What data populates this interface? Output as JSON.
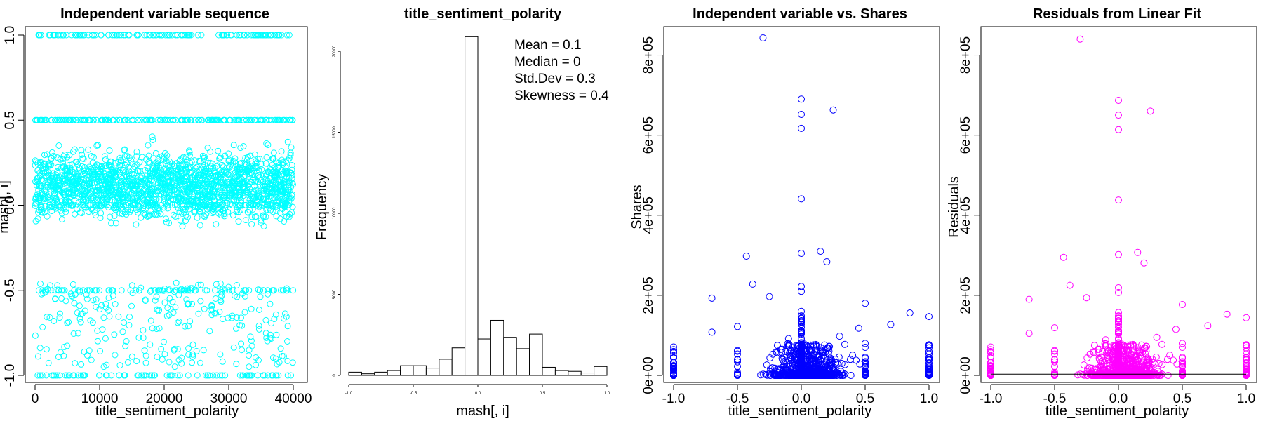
{
  "chart_data": [
    {
      "type": "scatter",
      "title": "Independent variable sequence",
      "xlabel": "title_sentiment_polarity",
      "ylabel": "mash[, i]",
      "xlim": [
        0,
        40000
      ],
      "ylim": [
        -1.0,
        1.0
      ],
      "x_ticks": [
        "0",
        "10000",
        "20000",
        "30000",
        "40000"
      ],
      "y_ticks": [
        "-1.0",
        "-0.5",
        "0.0",
        "0.5",
        "1.0"
      ],
      "point_color": "#00ffff",
      "grid": false
    },
    {
      "type": "bar",
      "title": "title_sentiment_polarity",
      "xlabel": "mash[, i]",
      "ylabel": "Frequency",
      "xlim": [
        -1.0,
        1.0
      ],
      "ylim": [
        0,
        21000
      ],
      "x_ticks": [
        "-1.0",
        "-0.5",
        "0.0",
        "0.5",
        "1.0"
      ],
      "y_ticks": [
        "0",
        "5000",
        "10000",
        "15000",
        "20000"
      ],
      "bin_edges": [
        -1.0,
        -0.9,
        -0.8,
        -0.7,
        -0.6,
        -0.5,
        -0.4,
        -0.3,
        -0.2,
        -0.1,
        0.0,
        0.1,
        0.2,
        0.3,
        0.4,
        0.5,
        0.6,
        0.7,
        0.8,
        0.9,
        1.0
      ],
      "values": [
        200,
        100,
        200,
        300,
        600,
        600,
        450,
        1000,
        1700,
        20900,
        2250,
        3400,
        2350,
        1650,
        2550,
        500,
        300,
        250,
        150,
        550
      ],
      "stats": [
        "Mean = 0.1",
        "Median = 0",
        "Std.Dev = 0.3",
        "Skewness = 0.4"
      ]
    },
    {
      "type": "scatter",
      "title": "Independent variable vs. Shares",
      "xlabel": "title_sentiment_polarity",
      "ylabel": "Shares",
      "xlim": [
        -1.0,
        1.0
      ],
      "ylim": [
        0,
        850000
      ],
      "x_ticks": [
        "-1.0",
        "-0.5",
        "0.0",
        "0.5",
        "1.0"
      ],
      "y_ticks": [
        "0e+00",
        "2e+05",
        "4e+05",
        "6e+05",
        "8e+05"
      ],
      "point_color": "#0000ff",
      "outliers": [
        [
          -0.3,
          843000
        ],
        [
          0.0,
          690000
        ],
        [
          0.0,
          652000
        ],
        [
          0.0,
          617000
        ],
        [
          0.25,
          663000
        ],
        [
          0.0,
          441000
        ],
        [
          0.15,
          310000
        ],
        [
          0.0,
          305000
        ],
        [
          -0.43,
          298000
        ],
        [
          0.2,
          284000
        ],
        [
          -0.38,
          228000
        ],
        [
          0.0,
          222000
        ],
        [
          0.0,
          210000
        ],
        [
          -0.25,
          197000
        ],
        [
          -0.7,
          193000
        ],
        [
          0.5,
          180000
        ],
        [
          0.85,
          156000
        ],
        [
          0.0,
          160000
        ],
        [
          0.7,
          127000
        ],
        [
          1.0,
          147000
        ],
        [
          -0.5,
          122000
        ],
        [
          -0.7,
          108000
        ],
        [
          0.45,
          118000
        ],
        [
          0.3,
          98000
        ],
        [
          -0.1,
          92000
        ]
      ],
      "grid": false
    },
    {
      "type": "scatter",
      "title": "Residuals from Linear Fit",
      "xlabel": "title_sentiment_polarity",
      "ylabel": "Residuals",
      "xlim": [
        -1.0,
        1.0
      ],
      "ylim": [
        0,
        850000
      ],
      "x_ticks": [
        "-1.0",
        "-0.5",
        "0.0",
        "0.5",
        "1.0"
      ],
      "y_ticks": [
        "0e+00",
        "2e+05",
        "4e+05",
        "6e+05",
        "8e+05"
      ],
      "point_color": "#ff00ff",
      "outliers": [
        [
          -0.3,
          840000
        ],
        [
          0.0,
          687000
        ],
        [
          0.0,
          650000
        ],
        [
          0.0,
          614000
        ],
        [
          0.25,
          660000
        ],
        [
          0.0,
          438000
        ],
        [
          0.15,
          307000
        ],
        [
          0.0,
          302000
        ],
        [
          -0.43,
          295000
        ],
        [
          0.2,
          281000
        ],
        [
          -0.38,
          225000
        ],
        [
          0.0,
          219000
        ],
        [
          0.0,
          207000
        ],
        [
          -0.25,
          194000
        ],
        [
          -0.7,
          190000
        ],
        [
          0.5,
          177000
        ],
        [
          0.85,
          153000
        ],
        [
          0.0,
          157000
        ],
        [
          0.7,
          124000
        ],
        [
          1.0,
          144000
        ],
        [
          -0.5,
          119000
        ],
        [
          -0.7,
          105000
        ],
        [
          0.45,
          115000
        ],
        [
          0.3,
          95000
        ],
        [
          -0.1,
          89000
        ]
      ],
      "grid": false
    }
  ]
}
